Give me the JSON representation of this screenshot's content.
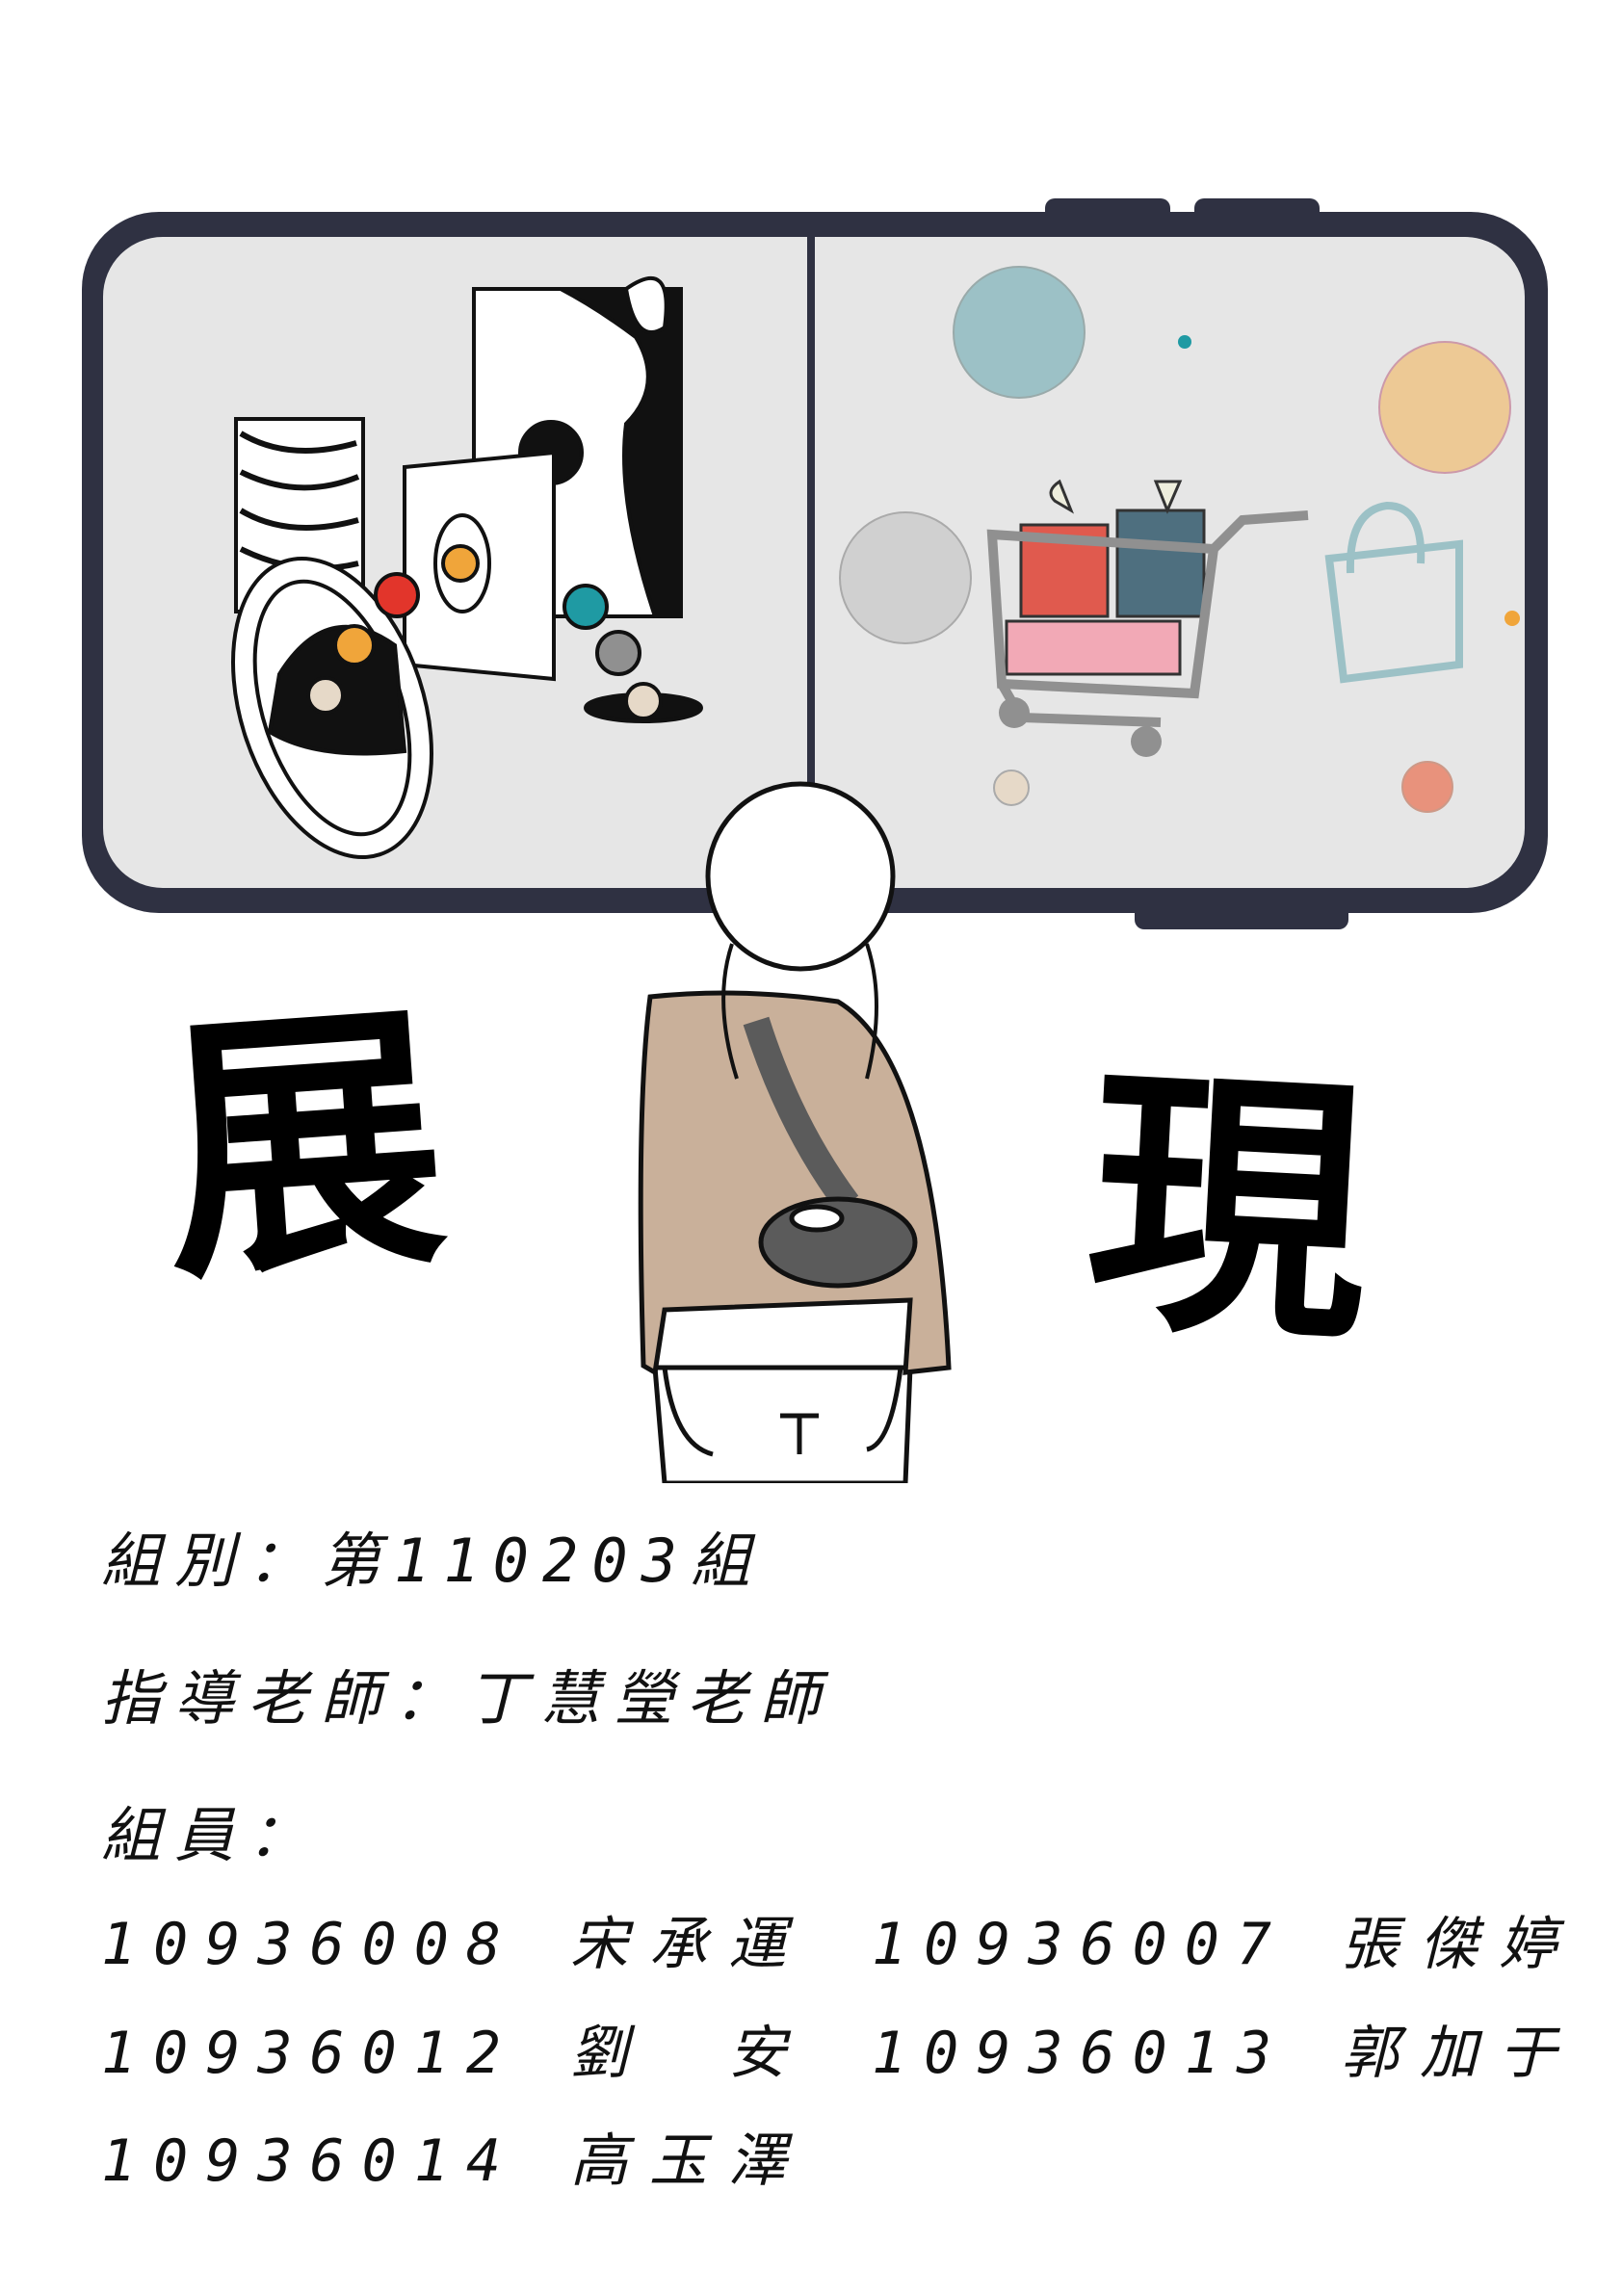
{
  "title": {
    "left_char": "展",
    "right_char": "現"
  },
  "group": {
    "label": "組別：",
    "value": "第110203組"
  },
  "advisor": {
    "label": "指導老師：",
    "value": "丁慧瑩老師"
  },
  "members_label": "組員：",
  "members": [
    {
      "id": "10936008",
      "name": "宋承運"
    },
    {
      "id": "10936007",
      "name": "張傑婷"
    },
    {
      "id": "10936012",
      "name": "劉　安"
    },
    {
      "id": "10936013",
      "name": "郭加于"
    },
    {
      "id": "10936014",
      "name": "高玉澤"
    }
  ],
  "colors": {
    "phone_frame": "#2f3142",
    "screen": "#e6e6e6",
    "sweater": "#c9b09a",
    "bag": "#5b5b5b",
    "accent_orange": "#f0a53a",
    "accent_red": "#e2352b",
    "accent_teal": "#1f9aa3"
  }
}
